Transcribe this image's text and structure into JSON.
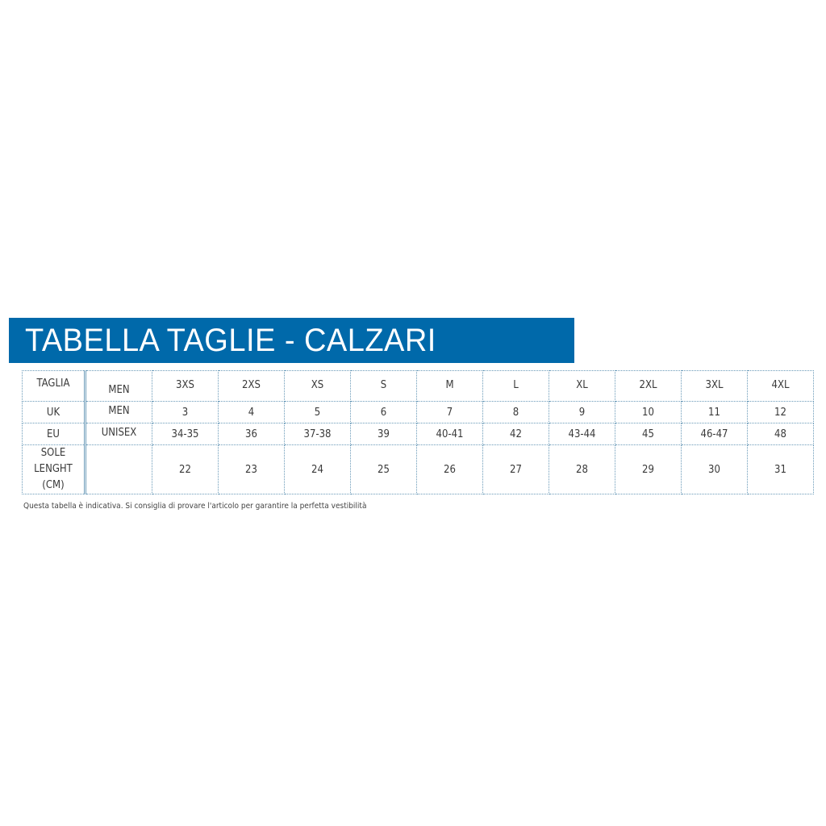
{
  "title": "TABELLA TAGLIE - CALZARI",
  "colors": {
    "banner": "#0069aa",
    "grid": "#6a9ab8"
  },
  "table": {
    "rows": [
      {
        "label": "TAGLIA",
        "sub": "MEN",
        "values": [
          "3XS",
          "2XS",
          "XS",
          "S",
          "M",
          "L",
          "XL",
          "2XL",
          "3XL",
          "4XL"
        ]
      },
      {
        "label": "UK",
        "sub": "MEN",
        "values": [
          "3",
          "4",
          "5",
          "6",
          "7",
          "8",
          "9",
          "10",
          "11",
          "12"
        ]
      },
      {
        "label": "EU",
        "sub": "UNISEX",
        "values": [
          "34-35",
          "36",
          "37-38",
          "39",
          "40-41",
          "42",
          "43-44",
          "45",
          "46-47",
          "48"
        ]
      },
      {
        "label_lines": [
          "SOLE",
          "LENGHT",
          "(CM)"
        ],
        "sub": "",
        "values": [
          "22",
          "23",
          "24",
          "25",
          "26",
          "27",
          "28",
          "29",
          "30",
          "31"
        ]
      }
    ]
  },
  "note": "Questa tabella è indicativa. Si consiglia di provare l'articolo per garantire la perfetta vestibilità"
}
